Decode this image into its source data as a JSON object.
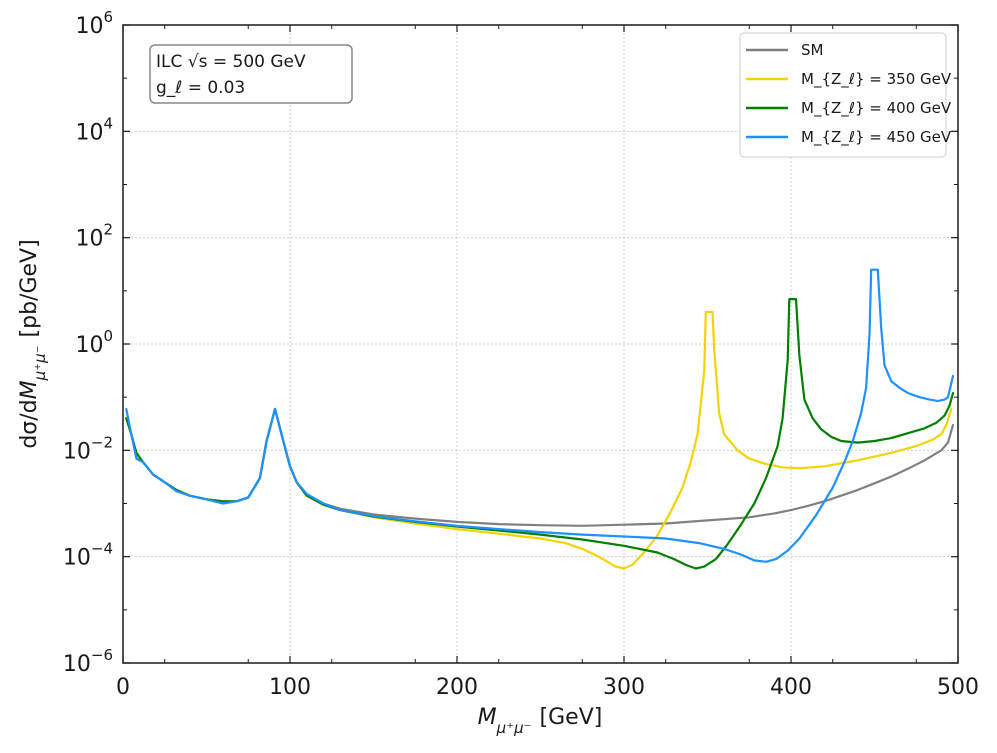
{
  "chart_data": {
    "type": "line",
    "title": "",
    "xlabel": "M_{μ+μ−} [GeV]",
    "ylabel": "dσ/dM_{μ+μ−} [pb/GeV]",
    "x_scale": "linear",
    "y_scale": "log",
    "xlim": [
      0,
      500
    ],
    "ylim": [
      1e-06,
      1000000.0
    ],
    "grid": true,
    "legend_position": "top-right",
    "x_ticks": [
      {
        "value": 0,
        "label": "0"
      },
      {
        "value": 100,
        "label": "100"
      },
      {
        "value": 200,
        "label": "200"
      },
      {
        "value": 300,
        "label": "300"
      },
      {
        "value": 400,
        "label": "400"
      },
      {
        "value": 500,
        "label": "500"
      }
    ],
    "y_ticks": [
      {
        "value": 1e-06,
        "base": "10",
        "exp": "−6"
      },
      {
        "value": 0.0001,
        "base": "10",
        "exp": "−4"
      },
      {
        "value": 0.01,
        "base": "10",
        "exp": "−2"
      },
      {
        "value": 1,
        "base": "10",
        "exp": "0"
      },
      {
        "value": 100,
        "base": "10",
        "exp": "2"
      },
      {
        "value": 10000,
        "base": "10",
        "exp": "4"
      },
      {
        "value": 1000000,
        "base": "10",
        "exp": "6"
      }
    ],
    "annotation": {
      "line1": "ILC √s = 500 GeV",
      "line2": "g_ℓ = 0.03"
    },
    "series": [
      {
        "name": "SM",
        "color": "#808080",
        "points": [
          [
            2,
            0.04
          ],
          [
            5,
            0.02
          ],
          [
            8,
            0.008
          ],
          [
            12,
            0.006
          ],
          [
            18,
            0.0035
          ],
          [
            25,
            0.0025
          ],
          [
            32,
            0.0018
          ],
          [
            40,
            0.0014
          ],
          [
            50,
            0.0012
          ],
          [
            60,
            0.0011
          ],
          [
            68,
            0.0011
          ],
          [
            75,
            0.0013
          ],
          [
            82,
            0.003
          ],
          [
            86,
            0.015
          ],
          [
            91,
            0.06
          ],
          [
            96,
            0.015
          ],
          [
            100,
            0.005
          ],
          [
            104,
            0.0025
          ],
          [
            110,
            0.0015
          ],
          [
            120,
            0.001
          ],
          [
            130,
            0.0008
          ],
          [
            150,
            0.00062
          ],
          [
            175,
            0.00052
          ],
          [
            200,
            0.00045
          ],
          [
            225,
            0.00041
          ],
          [
            250,
            0.00039
          ],
          [
            275,
            0.00038
          ],
          [
            300,
            0.0004
          ],
          [
            325,
            0.00042
          ],
          [
            350,
            0.00048
          ],
          [
            375,
            0.00055
          ],
          [
            390,
            0.00065
          ],
          [
            400,
            0.00075
          ],
          [
            410,
            0.0009
          ],
          [
            420,
            0.0011
          ],
          [
            430,
            0.0014
          ],
          [
            440,
            0.0018
          ],
          [
            450,
            0.0024
          ],
          [
            460,
            0.0032
          ],
          [
            470,
            0.0045
          ],
          [
            480,
            0.0065
          ],
          [
            490,
            0.01
          ],
          [
            494,
            0.014
          ],
          [
            497,
            0.03
          ]
        ]
      },
      {
        "name": "M_{Z_ℓ} = 350 GeV",
        "color": "#f5d300",
        "points": [
          [
            2,
            0.04
          ],
          [
            5,
            0.02
          ],
          [
            8,
            0.008
          ],
          [
            12,
            0.006
          ],
          [
            18,
            0.0035
          ],
          [
            25,
            0.0025
          ],
          [
            32,
            0.0018
          ],
          [
            40,
            0.0014
          ],
          [
            50,
            0.0012
          ],
          [
            60,
            0.0011
          ],
          [
            68,
            0.0011
          ],
          [
            75,
            0.0013
          ],
          [
            82,
            0.003
          ],
          [
            86,
            0.015
          ],
          [
            91,
            0.06
          ],
          [
            96,
            0.015
          ],
          [
            100,
            0.005
          ],
          [
            104,
            0.0025
          ],
          [
            110,
            0.0014
          ],
          [
            120,
            0.00095
          ],
          [
            130,
            0.00075
          ],
          [
            150,
            0.00055
          ],
          [
            175,
            0.00042
          ],
          [
            200,
            0.00033
          ],
          [
            225,
            0.00027
          ],
          [
            250,
            0.00022
          ],
          [
            265,
            0.00018
          ],
          [
            275,
            0.00014
          ],
          [
            285,
            0.0001
          ],
          [
            295,
            6.5e-05
          ],
          [
            300,
            6e-05
          ],
          [
            305,
            7e-05
          ],
          [
            312,
            0.00012
          ],
          [
            320,
            0.00025
          ],
          [
            328,
            0.0007
          ],
          [
            335,
            0.002
          ],
          [
            340,
            0.006
          ],
          [
            344,
            0.02
          ],
          [
            348,
            0.3
          ],
          [
            349,
            4
          ],
          [
            353,
            4
          ],
          [
            354,
            0.8
          ],
          [
            357,
            0.05
          ],
          [
            360,
            0.02
          ],
          [
            368,
            0.01
          ],
          [
            375,
            0.007
          ],
          [
            385,
            0.0055
          ],
          [
            395,
            0.0048
          ],
          [
            405,
            0.0046
          ],
          [
            420,
            0.005
          ],
          [
            440,
            0.0065
          ],
          [
            460,
            0.009
          ],
          [
            475,
            0.012
          ],
          [
            485,
            0.016
          ],
          [
            490,
            0.02
          ],
          [
            493,
            0.03
          ],
          [
            496,
            0.06
          ]
        ]
      },
      {
        "name": "M_{Z_ℓ} = 400 GeV",
        "color": "#008000",
        "points": [
          [
            2,
            0.04
          ],
          [
            5,
            0.02
          ],
          [
            8,
            0.009
          ],
          [
            12,
            0.006
          ],
          [
            18,
            0.0035
          ],
          [
            25,
            0.0025
          ],
          [
            32,
            0.0018
          ],
          [
            40,
            0.0014
          ],
          [
            50,
            0.0012
          ],
          [
            60,
            0.0011
          ],
          [
            68,
            0.0011
          ],
          [
            75,
            0.0013
          ],
          [
            82,
            0.003
          ],
          [
            86,
            0.015
          ],
          [
            91,
            0.06
          ],
          [
            96,
            0.015
          ],
          [
            100,
            0.005
          ],
          [
            104,
            0.0025
          ],
          [
            110,
            0.0014
          ],
          [
            120,
            0.00095
          ],
          [
            130,
            0.00075
          ],
          [
            150,
            0.00057
          ],
          [
            175,
            0.00045
          ],
          [
            200,
            0.00037
          ],
          [
            225,
            0.00031
          ],
          [
            250,
            0.00026
          ],
          [
            275,
            0.00021
          ],
          [
            300,
            0.00016
          ],
          [
            320,
            0.00012
          ],
          [
            330,
            9e-05
          ],
          [
            337,
            7e-05
          ],
          [
            343,
            6e-05
          ],
          [
            348,
            6.5e-05
          ],
          [
            355,
            9e-05
          ],
          [
            362,
            0.00017
          ],
          [
            370,
            0.0004
          ],
          [
            378,
            0.001
          ],
          [
            385,
            0.003
          ],
          [
            392,
            0.012
          ],
          [
            395,
            0.04
          ],
          [
            398,
            0.5
          ],
          [
            399,
            7
          ],
          [
            403,
            7
          ],
          [
            405,
            0.6
          ],
          [
            408,
            0.09
          ],
          [
            413,
            0.04
          ],
          [
            418,
            0.025
          ],
          [
            424,
            0.018
          ],
          [
            430,
            0.015
          ],
          [
            440,
            0.014
          ],
          [
            450,
            0.015
          ],
          [
            460,
            0.017
          ],
          [
            470,
            0.021
          ],
          [
            480,
            0.026
          ],
          [
            487,
            0.033
          ],
          [
            492,
            0.045
          ],
          [
            495,
            0.07
          ],
          [
            497,
            0.12
          ]
        ]
      },
      {
        "name": "M_{Z_ℓ} = 450 GeV",
        "color": "#1e90ff",
        "points": [
          [
            2,
            0.06
          ],
          [
            5,
            0.02
          ],
          [
            8,
            0.007
          ],
          [
            12,
            0.006
          ],
          [
            18,
            0.0035
          ],
          [
            25,
            0.0025
          ],
          [
            32,
            0.0017
          ],
          [
            40,
            0.0014
          ],
          [
            50,
            0.0012
          ],
          [
            60,
            0.001
          ],
          [
            68,
            0.0011
          ],
          [
            75,
            0.0013
          ],
          [
            82,
            0.003
          ],
          [
            86,
            0.015
          ],
          [
            91,
            0.06
          ],
          [
            96,
            0.015
          ],
          [
            100,
            0.005
          ],
          [
            104,
            0.0025
          ],
          [
            110,
            0.0015
          ],
          [
            120,
            0.001
          ],
          [
            130,
            0.00075
          ],
          [
            150,
            0.00058
          ],
          [
            175,
            0.00046
          ],
          [
            200,
            0.00038
          ],
          [
            225,
            0.00033
          ],
          [
            250,
            0.00029
          ],
          [
            275,
            0.00026
          ],
          [
            300,
            0.00024
          ],
          [
            325,
            0.00022
          ],
          [
            345,
            0.00018
          ],
          [
            360,
            0.00014
          ],
          [
            370,
            0.00011
          ],
          [
            378,
            8.5e-05
          ],
          [
            385,
            8e-05
          ],
          [
            391,
            9e-05
          ],
          [
            398,
            0.00013
          ],
          [
            405,
            0.00022
          ],
          [
            415,
            0.0006
          ],
          [
            425,
            0.002
          ],
          [
            432,
            0.006
          ],
          [
            437,
            0.015
          ],
          [
            442,
            0.05
          ],
          [
            445,
            0.15
          ],
          [
            447,
            1.5
          ],
          [
            448,
            25
          ],
          [
            452,
            25
          ],
          [
            454,
            2
          ],
          [
            456,
            0.4
          ],
          [
            460,
            0.2
          ],
          [
            465,
            0.15
          ],
          [
            470,
            0.12
          ],
          [
            477,
            0.1
          ],
          [
            483,
            0.09
          ],
          [
            488,
            0.085
          ],
          [
            492,
            0.09
          ],
          [
            494,
            0.1
          ],
          [
            497,
            0.25
          ]
        ]
      }
    ]
  }
}
